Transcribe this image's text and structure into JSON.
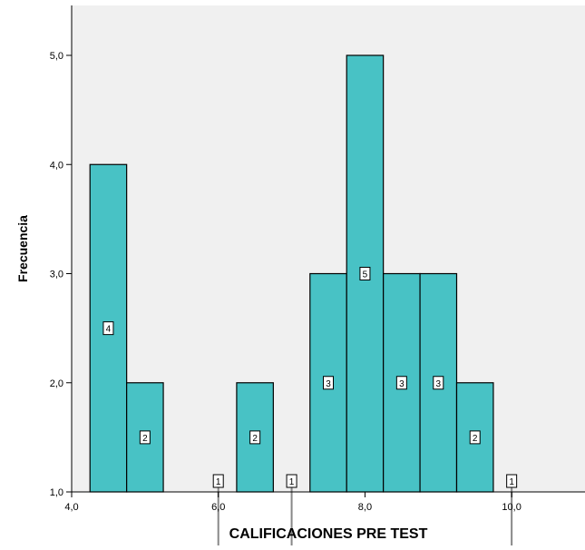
{
  "chart_data": {
    "type": "bar",
    "title": "",
    "xlabel": "CALIFICACIONES PRE TEST",
    "ylabel": "Frecuencia",
    "xlim": [
      4.0,
      11.0
    ],
    "ylim": [
      1.0,
      5.0
    ],
    "x_ticks": [
      "4,0",
      "6,0",
      "8,0",
      "10,0"
    ],
    "x_tick_values": [
      4.0,
      6.0,
      8.0,
      10.0
    ],
    "y_ticks": [
      "1,0",
      "2,0",
      "3,0",
      "4,0",
      "5,0"
    ],
    "y_tick_values": [
      1.0,
      2.0,
      3.0,
      4.0,
      5.0
    ],
    "bin_width": 0.5,
    "bins": [
      {
        "start": 4.25,
        "end": 4.75,
        "value": 4,
        "label": "4"
      },
      {
        "start": 4.75,
        "end": 5.25,
        "value": 2,
        "label": "2"
      },
      {
        "start": 6.25,
        "end": 6.75,
        "value": 2,
        "label": "2"
      },
      {
        "start": 7.25,
        "end": 7.75,
        "value": 3,
        "label": "3"
      },
      {
        "start": 7.75,
        "end": 8.25,
        "value": 5,
        "label": "5"
      },
      {
        "start": 8.25,
        "end": 8.75,
        "value": 3,
        "label": "3"
      },
      {
        "start": 8.75,
        "end": 9.25,
        "value": 3,
        "label": "3"
      },
      {
        "start": 9.25,
        "end": 9.75,
        "value": 2,
        "label": "2"
      }
    ],
    "single_markers": [
      {
        "x": 6.0,
        "value": 1,
        "label": "1"
      },
      {
        "x": 7.0,
        "value": 1,
        "label": "1"
      },
      {
        "x": 10.0,
        "value": 1,
        "label": "1"
      }
    ],
    "grid": false,
    "colors": {
      "bar_fill": "#48C2C5",
      "bar_stroke": "#000000",
      "plot_background": "#F0F0F0",
      "axis": "#000000",
      "marker_line": "#888888"
    }
  }
}
